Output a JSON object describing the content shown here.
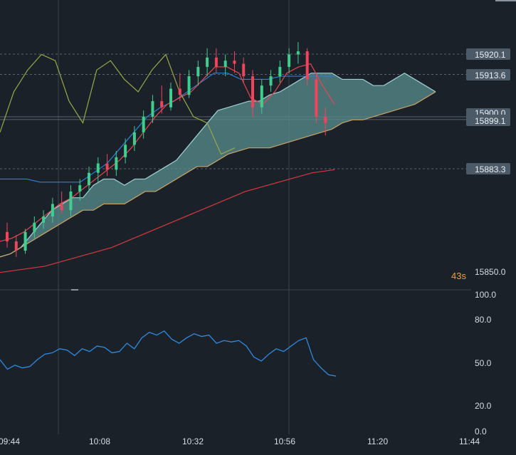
{
  "colors": {
    "background": "#1b2129",
    "grid": "#2a323c",
    "candle_up": "#3ecf8e",
    "candle_down": "#f0445a",
    "cloud_fill": "#5a8d8e",
    "cloud_upper": "#9fd0d4",
    "cloud_lower": "#c8a36a",
    "chikou": "#9aa84a",
    "kijun": "#2f7fd6",
    "tenkan": "#e8474f",
    "ma": "#d8383f",
    "rsi": "#2f8ae0",
    "label_bg": "#4c5a68",
    "countdown": "#f0a03a",
    "axis_text": "#d7dde3"
  },
  "countdown": "43s",
  "price_labels": [
    "15920.1",
    "15913.6",
    "15899.1",
    "15883.3"
  ],
  "price_hidden_label": "15900.0",
  "price_axis_bottom": "15850.0",
  "rsi_axis": [
    "100.0",
    "80.0",
    "50.0",
    "20.0",
    "0.0"
  ],
  "time_axis": [
    "09:44",
    "10:08",
    "10:32",
    "10:56",
    "11:20",
    "11:44"
  ],
  "chart_data": [
    {
      "type": "candlestick",
      "panel": "price",
      "y_axis_labels": [
        "15850.0"
      ],
      "horizontal_levels": [
        15920.1,
        15913.6,
        15900.0,
        15899.1,
        15883.3
      ],
      "x_ticks": [
        "09:44",
        "10:08",
        "10:32",
        "10:56",
        "11:20",
        "11:44"
      ],
      "candles": [
        {
          "o": 15863,
          "h": 15866,
          "l": 15858,
          "c": 15860
        },
        {
          "o": 15860,
          "h": 15862,
          "l": 15855,
          "c": 15857
        },
        {
          "o": 15857,
          "h": 15864,
          "l": 15856,
          "c": 15863
        },
        {
          "o": 15863,
          "h": 15868,
          "l": 15861,
          "c": 15866
        },
        {
          "o": 15866,
          "h": 15870,
          "l": 15864,
          "c": 15868
        },
        {
          "o": 15868,
          "h": 15874,
          "l": 15866,
          "c": 15872
        },
        {
          "o": 15872,
          "h": 15876,
          "l": 15869,
          "c": 15870
        },
        {
          "o": 15870,
          "h": 15878,
          "l": 15868,
          "c": 15876
        },
        {
          "o": 15876,
          "h": 15880,
          "l": 15873,
          "c": 15878
        },
        {
          "o": 15878,
          "h": 15884,
          "l": 15876,
          "c": 15882
        },
        {
          "o": 15882,
          "h": 15887,
          "l": 15879,
          "c": 15885
        },
        {
          "o": 15885,
          "h": 15888,
          "l": 15881,
          "c": 15883
        },
        {
          "o": 15883,
          "h": 15889,
          "l": 15881,
          "c": 15887
        },
        {
          "o": 15887,
          "h": 15893,
          "l": 15885,
          "c": 15891
        },
        {
          "o": 15891,
          "h": 15897,
          "l": 15889,
          "c": 15895
        },
        {
          "o": 15895,
          "h": 15902,
          "l": 15893,
          "c": 15900
        },
        {
          "o": 15900,
          "h": 15907,
          "l": 15898,
          "c": 15905
        },
        {
          "o": 15905,
          "h": 15910,
          "l": 15901,
          "c": 15903
        },
        {
          "o": 15903,
          "h": 15911,
          "l": 15902,
          "c": 15909
        },
        {
          "o": 15909,
          "h": 15914,
          "l": 15905,
          "c": 15907
        },
        {
          "o": 15907,
          "h": 15915,
          "l": 15906,
          "c": 15913
        },
        {
          "o": 15913,
          "h": 15918,
          "l": 15910,
          "c": 15916
        },
        {
          "o": 15916,
          "h": 15922,
          "l": 15913,
          "c": 15919
        },
        {
          "o": 15919,
          "h": 15922,
          "l": 15914,
          "c": 15916
        },
        {
          "o": 15916,
          "h": 15920,
          "l": 15913,
          "c": 15918
        },
        {
          "o": 15918,
          "h": 15921,
          "l": 15914,
          "c": 15917
        },
        {
          "o": 15917,
          "h": 15919,
          "l": 15911,
          "c": 15913
        },
        {
          "o": 15913,
          "h": 15915,
          "l": 15900,
          "c": 15903
        },
        {
          "o": 15903,
          "h": 15912,
          "l": 15901,
          "c": 15910
        },
        {
          "o": 15910,
          "h": 15915,
          "l": 15908,
          "c": 15913
        },
        {
          "o": 15913,
          "h": 15918,
          "l": 15911,
          "c": 15916
        },
        {
          "o": 15916,
          "h": 15922,
          "l": 15914,
          "c": 15920
        },
        {
          "o": 15920,
          "h": 15924,
          "l": 15917,
          "c": 15921
        },
        {
          "o": 15921,
          "h": 15922,
          "l": 15910,
          "c": 15912
        },
        {
          "o": 15912,
          "h": 15914,
          "l": 15898,
          "c": 15900
        },
        {
          "o": 15900,
          "h": 15903,
          "l": 15894,
          "c": 15898
        }
      ],
      "overlays": [
        {
          "kind": "ichimoku_cloud_upper",
          "values": [
            15855,
            15856,
            15858,
            15862,
            15866,
            15870,
            15872,
            15874,
            15874,
            15878,
            15880,
            15880,
            15878,
            15880,
            15880,
            15882,
            15884,
            15886,
            15890,
            15894,
            15898,
            15902,
            15903,
            15904,
            15905,
            15905,
            15907,
            15908,
            15910,
            15912,
            15914,
            15914,
            15914,
            15912,
            15912,
            15912,
            15910,
            15910,
            15912,
            15914,
            15912,
            15910,
            15908
          ]
        },
        {
          "kind": "ichimoku_cloud_lower",
          "values": [
            15855,
            15856,
            15858,
            15860,
            15862,
            15864,
            15866,
            15868,
            15870,
            15870,
            15872,
            15872,
            15872,
            15874,
            15876,
            15876,
            15878,
            15880,
            15882,
            15884,
            15884,
            15886,
            15888,
            15889,
            15890,
            15890,
            15890,
            15891,
            15892,
            15893,
            15894,
            15895,
            15896,
            15898,
            15899,
            15899,
            15900,
            15901,
            15902,
            15903,
            15904,
            15906,
            15908
          ]
        },
        {
          "kind": "kijun",
          "values": [
            15880,
            15880,
            15880,
            15879,
            15879,
            15879,
            15879,
            15882,
            15885,
            15890,
            15895,
            15900,
            15903,
            15905,
            15908,
            15911,
            15914,
            15914,
            15912,
            15912,
            15912,
            15913,
            15913,
            15913,
            15913,
            15913
          ]
        },
        {
          "kind": "tenkan",
          "values": [
            15860,
            15861,
            15863,
            15866,
            15869,
            15872,
            15874,
            15877,
            15880,
            15883,
            15886,
            15890,
            15895,
            15900,
            15904,
            15906,
            15908,
            15912,
            15916,
            15916,
            15914,
            15906,
            15904,
            15908,
            15914,
            15916,
            15917,
            15910,
            15904
          ]
        },
        {
          "kind": "chikou",
          "values": [
            15895,
            15908,
            15915,
            15920,
            15918,
            15905,
            15898,
            15915,
            15918,
            15912,
            15908,
            15915,
            15920,
            15908,
            15900,
            15898,
            15888,
            15890
          ]
        },
        {
          "kind": "moving_average",
          "values": [
            15850,
            15851,
            15852,
            15854,
            15856,
            15858,
            15861,
            15864,
            15867,
            15870,
            15873,
            15876,
            15878,
            15880,
            15882,
            15883
          ]
        }
      ]
    },
    {
      "type": "line",
      "panel": "oscillator",
      "y_axis_labels": [
        "100.0",
        "80.0",
        "50.0",
        "20.0",
        "0.0"
      ],
      "ylim": [
        0,
        100
      ],
      "series": [
        {
          "values": [
            52,
            45,
            48,
            46,
            47,
            52,
            56,
            57,
            60,
            59,
            55,
            60,
            58,
            62,
            61,
            57,
            58,
            64,
            60,
            68,
            72,
            70,
            73,
            67,
            64,
            68,
            71,
            69,
            70,
            64,
            66,
            65,
            66,
            62,
            54,
            51,
            56,
            60,
            58,
            62,
            66,
            68,
            52,
            46,
            41,
            40
          ]
        }
      ]
    }
  ]
}
